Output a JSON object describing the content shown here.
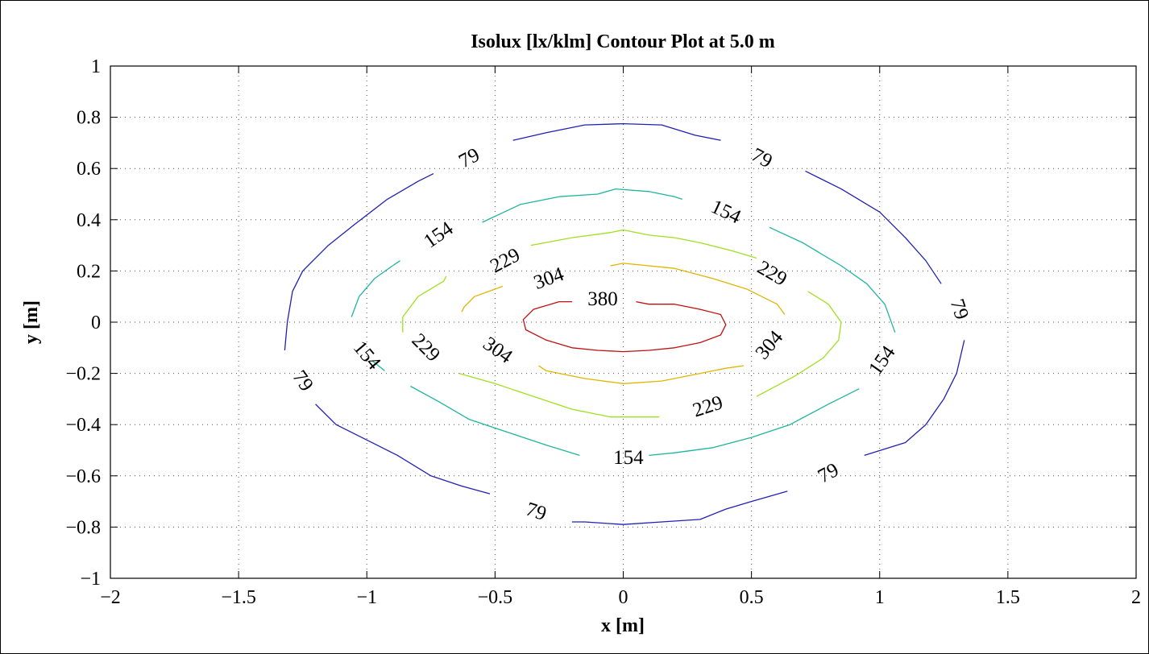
{
  "chart_data": {
    "type": "contour",
    "title": "Isolux [lx/klm] Contour Plot at 5.0 m",
    "xlabel": "x [m]",
    "ylabel": "y [m]",
    "xlim": [
      -2,
      2
    ],
    "ylim": [
      -1,
      1
    ],
    "xticks": [
      -2,
      -1.5,
      -1,
      -0.5,
      0,
      0.5,
      1,
      1.5,
      2
    ],
    "xtick_labels": [
      "−2",
      "−1.5",
      "−1",
      "−0.5",
      "0",
      "0.5",
      "1",
      "1.5",
      "2"
    ],
    "yticks": [
      1,
      0.8,
      0.6,
      0.4,
      0.2,
      0,
      -0.2,
      -0.4,
      -0.6,
      -0.8,
      -1
    ],
    "ytick_labels": [
      "1",
      "0.8",
      "0.6",
      "0.4",
      "0.2",
      "0",
      "−0.2",
      "−0.4",
      "−0.6",
      "−0.8",
      "−1"
    ],
    "grid": true,
    "levels": [
      {
        "value": 79,
        "label": "79",
        "color": "#2020b4",
        "segments": [
          [
            [
              -0.43,
              0.71
            ],
            [
              -0.3,
              0.74
            ],
            [
              -0.15,
              0.77
            ],
            [
              0,
              0.775
            ],
            [
              0.15,
              0.77
            ],
            [
              0.28,
              0.73
            ],
            [
              0.38,
              0.71
            ]
          ],
          [
            [
              0.71,
              0.59
            ],
            [
              0.85,
              0.52
            ],
            [
              1,
              0.43
            ],
            [
              1.1,
              0.33
            ],
            [
              1.18,
              0.24
            ],
            [
              1.24,
              0.15
            ]
          ],
          [
            [
              1.33,
              -0.07
            ],
            [
              1.3,
              -0.2
            ],
            [
              1.25,
              -0.3
            ],
            [
              1.18,
              -0.4
            ],
            [
              1.1,
              -0.47
            ],
            [
              0.94,
              -0.52
            ]
          ],
          [
            [
              0.64,
              -0.66
            ],
            [
              0.5,
              -0.7
            ],
            [
              0.4,
              -0.73
            ],
            [
              0.3,
              -0.77
            ],
            [
              0.15,
              -0.78
            ],
            [
              0,
              -0.79
            ],
            [
              -0.15,
              -0.78
            ],
            [
              -0.2,
              -0.78
            ]
          ],
          [
            [
              -0.52,
              -0.67
            ],
            [
              -0.63,
              -0.64
            ],
            [
              -0.75,
              -0.6
            ],
            [
              -0.88,
              -0.52
            ],
            [
              -1,
              -0.46
            ],
            [
              -1.12,
              -0.4
            ],
            [
              -1.2,
              -0.32
            ]
          ],
          [
            [
              -1.32,
              -0.11
            ],
            [
              -1.31,
              0
            ],
            [
              -1.29,
              0.12
            ],
            [
              -1.25,
              0.2
            ],
            [
              -1.15,
              0.3
            ],
            [
              -1.05,
              0.38
            ],
            [
              -0.92,
              0.48
            ],
            [
              -0.8,
              0.55
            ],
            [
              -0.74,
              0.58
            ]
          ]
        ],
        "labels": [
          {
            "x": -0.6,
            "y": 0.64,
            "angle": -28
          },
          {
            "x": 0.54,
            "y": 0.64,
            "angle": 28
          },
          {
            "x": 1.31,
            "y": 0.05,
            "angle": 72
          },
          {
            "x": 0.8,
            "y": -0.59,
            "angle": -28
          },
          {
            "x": -0.34,
            "y": -0.74,
            "angle": 18
          },
          {
            "x": -1.25,
            "y": -0.23,
            "angle": 55
          }
        ]
      },
      {
        "value": 154,
        "label": "154",
        "color": "#20b4a0",
        "segments": [
          [
            [
              -0.55,
              0.39
            ],
            [
              -0.4,
              0.46
            ],
            [
              -0.25,
              0.49
            ],
            [
              -0.1,
              0.5
            ],
            [
              -0.03,
              0.52
            ],
            [
              0.1,
              0.51
            ],
            [
              0.2,
              0.49
            ],
            [
              0.23,
              0.48
            ]
          ],
          [
            [
              0.57,
              0.37
            ],
            [
              0.7,
              0.31
            ],
            [
              0.85,
              0.22
            ],
            [
              0.95,
              0.15
            ],
            [
              1.02,
              0.07
            ],
            [
              1.06,
              -0.04
            ]
          ],
          [
            [
              0.92,
              -0.26
            ],
            [
              0.8,
              -0.32
            ],
            [
              0.65,
              -0.4
            ],
            [
              0.5,
              -0.45
            ],
            [
              0.35,
              -0.49
            ],
            [
              0.2,
              -0.51
            ],
            [
              0.1,
              -0.52
            ]
          ],
          [
            [
              -0.17,
              -0.52
            ],
            [
              -0.3,
              -0.48
            ],
            [
              -0.45,
              -0.43
            ],
            [
              -0.6,
              -0.38
            ],
            [
              -0.72,
              -0.31
            ],
            [
              -0.83,
              -0.25
            ]
          ],
          [
            [
              -1.06,
              0.02
            ],
            [
              -1.03,
              0.1
            ],
            [
              -0.97,
              0.17
            ],
            [
              -0.9,
              0.22
            ],
            [
              -0.87,
              0.24
            ]
          ],
          [
            [
              -0.93,
              -0.19
            ],
            [
              -0.98,
              -0.15
            ]
          ]
        ],
        "labels": [
          {
            "x": -0.72,
            "y": 0.34,
            "angle": -35
          },
          {
            "x": 0.4,
            "y": 0.43,
            "angle": 25
          },
          {
            "x": 1.01,
            "y": -0.15,
            "angle": -55
          },
          {
            "x": 0.02,
            "y": -0.53,
            "angle": 0
          },
          {
            "x": -1.0,
            "y": -0.13,
            "angle": 50
          }
        ]
      },
      {
        "value": 229,
        "label": "229",
        "color": "#a0e020",
        "segments": [
          [
            [
              -0.36,
              0.3
            ],
            [
              -0.2,
              0.33
            ],
            [
              -0.05,
              0.35
            ],
            [
              0,
              0.36
            ],
            [
              0.1,
              0.34
            ],
            [
              0.2,
              0.33
            ],
            [
              0.3,
              0.31
            ],
            [
              0.42,
              0.28
            ],
            [
              0.52,
              0.25
            ]
          ],
          [
            [
              0.72,
              0.12
            ],
            [
              0.8,
              0.07
            ],
            [
              0.85,
              0
            ],
            [
              0.84,
              -0.07
            ],
            [
              0.78,
              -0.14
            ],
            [
              0.67,
              -0.21
            ],
            [
              0.52,
              -0.29
            ]
          ],
          [
            [
              0.14,
              -0.37
            ],
            [
              0.03,
              -0.37
            ],
            [
              -0.05,
              -0.37
            ],
            [
              -0.1,
              -0.36
            ],
            [
              -0.2,
              -0.34
            ],
            [
              -0.35,
              -0.29
            ],
            [
              -0.5,
              -0.24
            ],
            [
              -0.64,
              -0.2
            ]
          ],
          [
            [
              -0.86,
              -0.04
            ],
            [
              -0.86,
              0.02
            ],
            [
              -0.8,
              0.1
            ],
            [
              -0.7,
              0.16
            ],
            [
              -0.69,
              0.18
            ]
          ]
        ],
        "labels": [
          {
            "x": -0.46,
            "y": 0.24,
            "angle": -28
          },
          {
            "x": 0.58,
            "y": 0.19,
            "angle": 30
          },
          {
            "x": 0.33,
            "y": -0.33,
            "angle": -18
          },
          {
            "x": -0.77,
            "y": -0.1,
            "angle": 45
          }
        ]
      },
      {
        "value": 304,
        "label": "304",
        "color": "#e0b400",
        "segments": [
          [
            [
              -0.05,
              0.22
            ],
            [
              0,
              0.23
            ],
            [
              0.1,
              0.22
            ],
            [
              0.2,
              0.21
            ],
            [
              0.35,
              0.17
            ],
            [
              0.48,
              0.13
            ],
            [
              0.6,
              0.07
            ],
            [
              0.63,
              0.03
            ]
          ],
          [
            [
              0.47,
              -0.17
            ],
            [
              0.4,
              -0.18
            ],
            [
              0.3,
              -0.2
            ],
            [
              0.15,
              -0.23
            ],
            [
              0,
              -0.24
            ],
            [
              -0.15,
              -0.22
            ],
            [
              -0.3,
              -0.19
            ],
            [
              -0.33,
              -0.17
            ]
          ],
          [
            [
              -0.63,
              0.04
            ],
            [
              -0.62,
              0.06
            ],
            [
              -0.58,
              0.1
            ],
            [
              -0.47,
              0.14
            ]
          ]
        ],
        "labels": [
          {
            "x": -0.29,
            "y": 0.17,
            "angle": -20
          },
          {
            "x": 0.57,
            "y": -0.09,
            "angle": -50
          },
          {
            "x": -0.49,
            "y": -0.11,
            "angle": 35
          }
        ]
      },
      {
        "value": 380,
        "label": "380",
        "color": "#c01010",
        "segments": [
          [
            [
              -0.2,
              0.08
            ],
            [
              -0.25,
              0.08
            ],
            [
              -0.35,
              0.05
            ],
            [
              -0.39,
              0.01
            ],
            [
              -0.38,
              -0.03
            ],
            [
              -0.3,
              -0.07
            ],
            [
              -0.2,
              -0.1
            ],
            [
              -0.1,
              -0.11
            ],
            [
              0,
              -0.115
            ],
            [
              0.1,
              -0.11
            ],
            [
              0.2,
              -0.1
            ],
            [
              0.3,
              -0.08
            ],
            [
              0.38,
              -0.05
            ],
            [
              0.4,
              -0.01
            ],
            [
              0.38,
              0.03
            ],
            [
              0.3,
              0.05
            ],
            [
              0.2,
              0.07
            ],
            [
              0.1,
              0.07
            ],
            [
              0.05,
              0.08
            ]
          ]
        ],
        "labels": [
          {
            "x": -0.08,
            "y": 0.09,
            "angle": 0
          }
        ]
      }
    ]
  }
}
